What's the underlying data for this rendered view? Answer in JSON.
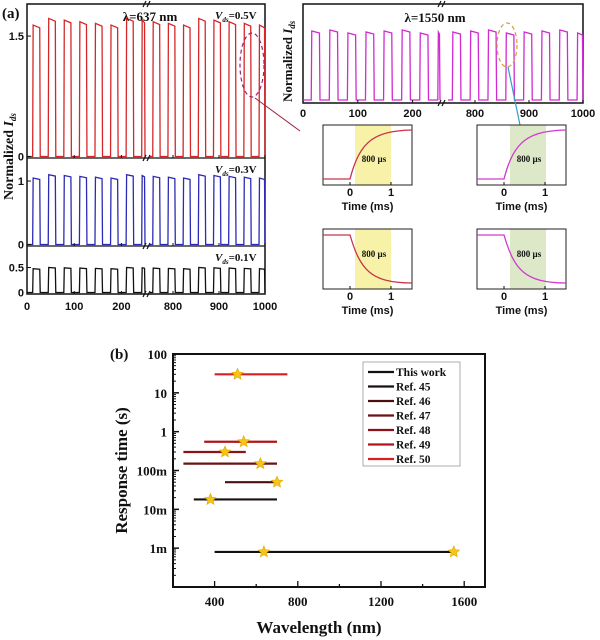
{
  "panel_labels": {
    "a": "(a)",
    "b": "(b)"
  },
  "chart_data": [
    {
      "id": "a-637",
      "type": "line",
      "title": "λ=637 nm",
      "ylabel": "Normalized I_ds",
      "ylabel_main": "Normalized ",
      "ylabel_sym": "I",
      "ylabel_sub": "ds",
      "xlabel": "",
      "x_break": [
        250,
        750
      ],
      "x_ticks": [
        "0",
        "100",
        "200",
        "800",
        "900",
        "1000"
      ],
      "x_tick_values": [
        0,
        100,
        200,
        800,
        900,
        1000
      ],
      "period": 33,
      "pulses_per_segment": 9,
      "series": [
        {
          "name": "Vds=0.5V",
          "label_sym": "V",
          "label_sub": "ds",
          "label_val": "=0.5V",
          "color": "#d62728",
          "on_level": 1.72,
          "off_level": 0,
          "y_ticks": [
            "0",
            "1.5"
          ],
          "y_tick_values": [
            0,
            1.5
          ],
          "ylim": [
            0,
            1.85
          ]
        },
        {
          "name": "Vds=0.3V",
          "label_sym": "V",
          "label_sub": "ds",
          "label_val": "=0.3V",
          "color": "#2b2bb5",
          "on_level": 1.1,
          "off_level": 0,
          "y_ticks": [
            "0",
            "1"
          ],
          "y_tick_values": [
            0,
            1
          ],
          "ylim": [
            0,
            1.3
          ]
        },
        {
          "name": "Vds=0.1V",
          "label_sym": "V",
          "label_sub": "ds",
          "label_val": "=0.1V",
          "color": "#111111",
          "on_level": 0.5,
          "off_level": 0,
          "y_ticks": [
            "0",
            "0.5"
          ],
          "y_tick_values": [
            0,
            0.5
          ],
          "ylim": [
            0,
            0.85
          ]
        }
      ]
    },
    {
      "id": "a-1550",
      "type": "line",
      "title": "λ=1550 nm",
      "ylabel": "Normalized I_ds",
      "ylabel_main": "Normalized ",
      "ylabel_sym": "I",
      "ylabel_sub": "ds",
      "x_break": [
        250,
        750
      ],
      "x_ticks": [
        "0",
        "100",
        "200",
        "800",
        "900",
        "1000"
      ],
      "x_tick_values": [
        0,
        100,
        200,
        800,
        900,
        1000
      ],
      "series": [
        {
          "name": "1550 nm",
          "color": "#d12ad1",
          "on_level": 0.95,
          "off_level": 0
        }
      ]
    },
    {
      "id": "a-insets",
      "type": "line",
      "xlabel": "Time (ms)",
      "x_ticks": [
        "0",
        "1"
      ],
      "annotation": "800 µs",
      "insets": [
        {
          "name": "rise-637",
          "edge": "rise",
          "color": "#c8344a",
          "band": "#f7f2a8"
        },
        {
          "name": "rise-1550",
          "edge": "rise",
          "color": "#d03ad0",
          "band": "#dde8c8"
        },
        {
          "name": "fall-637",
          "edge": "fall",
          "color": "#c8344a",
          "band": "#f7f2a8"
        },
        {
          "name": "fall-1550",
          "edge": "fall",
          "color": "#d03ad0",
          "band": "#dde8c8"
        }
      ]
    },
    {
      "id": "b",
      "type": "scatter",
      "xlabel": "Wavelength (nm)",
      "ylabel": "Response time (s)",
      "xlim": [
        200,
        1700
      ],
      "ylim": [
        0.0001,
        100
      ],
      "yscale": "log",
      "x_ticks": [
        "400",
        "800",
        "1200",
        "1600"
      ],
      "x_tick_values": [
        400,
        800,
        1200,
        1600
      ],
      "y_ticks": [
        "1m",
        "10m",
        "100m",
        "1",
        "10",
        "100"
      ],
      "y_tick_values": [
        0.001,
        0.01,
        0.1,
        1,
        10,
        100
      ],
      "legend_position": "top-right",
      "series": [
        {
          "name": "This work",
          "color": "#111111",
          "range": [
            400,
            1550
          ],
          "response": 0.0008,
          "stars": [
            637,
            1550
          ]
        },
        {
          "name": "Ref. 45",
          "color": "#1a1111",
          "range": [
            300,
            700
          ],
          "response": 0.018,
          "stars": [
            380
          ]
        },
        {
          "name": "Ref. 46",
          "color": "#4a1010",
          "range": [
            450,
            700
          ],
          "response": 0.05,
          "stars": [
            700
          ]
        },
        {
          "name": "Ref. 47",
          "color": "#6b1216",
          "range": [
            250,
            700
          ],
          "response": 0.15,
          "stars": [
            620
          ]
        },
        {
          "name": "Ref. 48",
          "color": "#8a1218",
          "range": [
            250,
            550
          ],
          "response": 0.3,
          "stars": [
            450
          ]
        },
        {
          "name": "Ref. 49",
          "color": "#b0141c",
          "range": [
            350,
            700
          ],
          "response": 0.55,
          "stars": [
            540
          ]
        },
        {
          "name": "Ref. 50",
          "color": "#d62020",
          "range": [
            400,
            750
          ],
          "response": 30,
          "stars": [
            510
          ]
        }
      ]
    }
  ]
}
